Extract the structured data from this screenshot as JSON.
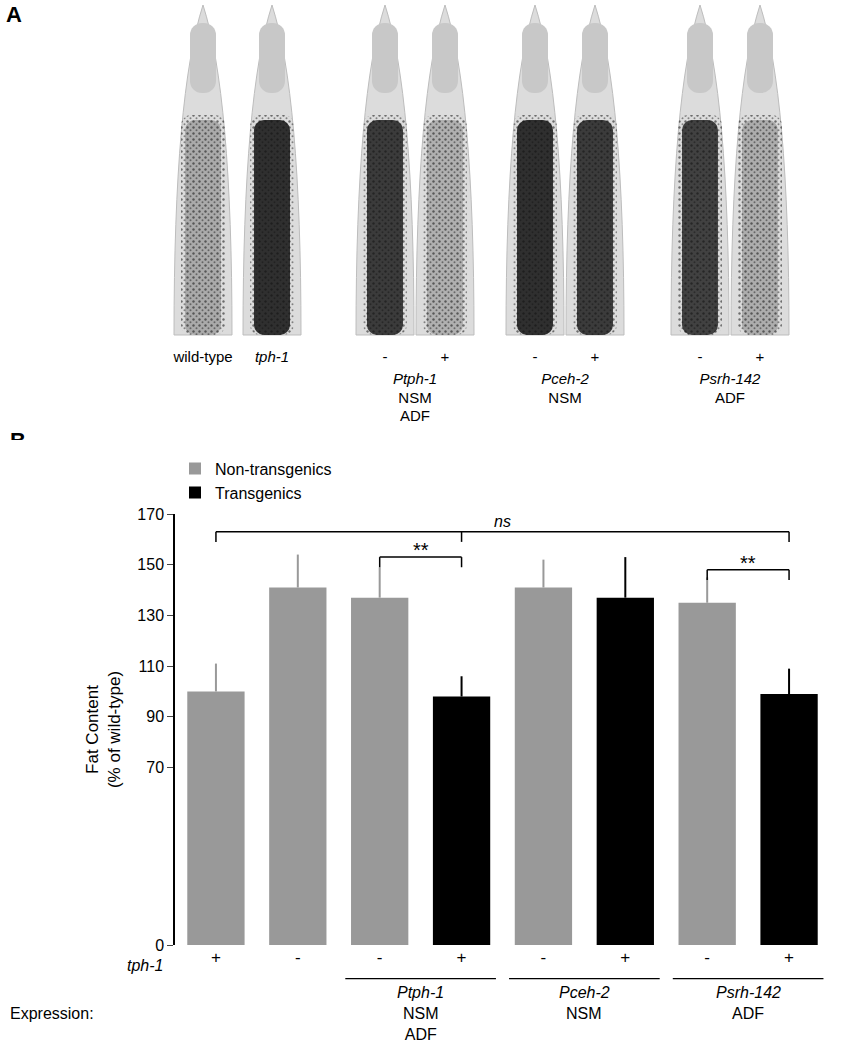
{
  "panel_a": {
    "label": "A",
    "labels": [
      "wild-type",
      "tph-1",
      "-",
      "+",
      "-",
      "+",
      "-",
      "+"
    ]
  },
  "panel_b": {
    "label": "B"
  },
  "chart_data": {
    "type": "bar",
    "ylabel": [
      "Fat Content",
      "(% of wild-type)"
    ],
    "categories": [
      "+",
      "-",
      "-",
      "+",
      "-",
      "+",
      "-",
      "+"
    ],
    "row_label": "tph-1",
    "expression_label": "Expression:",
    "groups": [
      {
        "label": "Ptph-1",
        "expression": [
          "NSM",
          "ADF"
        ],
        "span": [
          2,
          3
        ]
      },
      {
        "label": "Pceh-2",
        "expression": [
          "NSM"
        ],
        "span": [
          4,
          5
        ]
      },
      {
        "label": "Psrh-142",
        "expression": [
          "ADF"
        ],
        "span": [
          6,
          7
        ]
      }
    ],
    "series": [
      {
        "name": "Non-transgenics",
        "color": "#999999",
        "values": [
          100,
          141,
          137,
          null,
          141,
          null,
          135,
          null
        ],
        "errors": [
          11,
          13,
          12,
          null,
          11,
          null,
          10,
          null
        ]
      },
      {
        "name": "Transgenics",
        "color": "#000000",
        "values": [
          null,
          null,
          null,
          98,
          null,
          137,
          null,
          99
        ],
        "errors": [
          null,
          null,
          null,
          8,
          null,
          16,
          null,
          10
        ]
      }
    ],
    "comparisons": [
      {
        "from": 2,
        "to": 3,
        "label": "**",
        "y": 153
      },
      {
        "from": 6,
        "to": 7,
        "label": "**",
        "y": 148
      },
      {
        "from": 0,
        "to": 7,
        "via": 3,
        "label": "ns",
        "y": 163
      }
    ],
    "ylim": [
      0,
      170
    ],
    "yticks": [
      0,
      70,
      90,
      110,
      130,
      150,
      170
    ],
    "grid": false,
    "legend": "top-left"
  }
}
